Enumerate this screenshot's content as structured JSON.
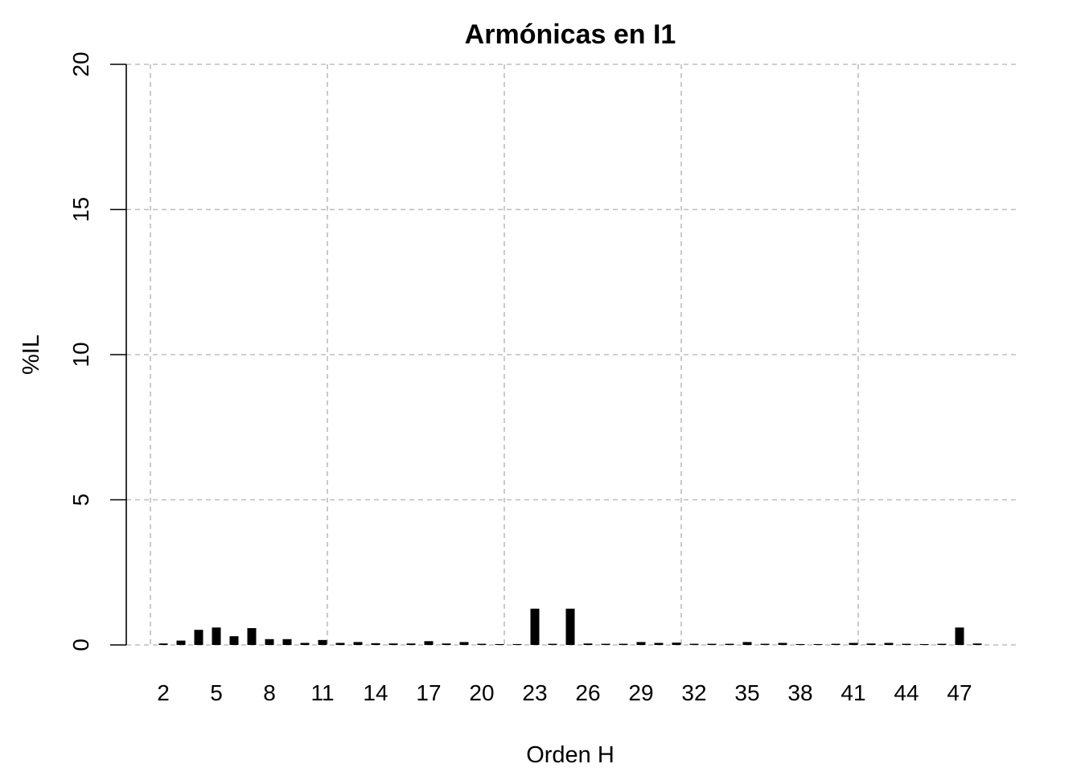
{
  "chart_data": {
    "type": "bar",
    "title": "Armónicas en I1",
    "xlabel": "Orden H",
    "ylabel": "%IL",
    "ylim": [
      0,
      20
    ],
    "y_ticks": [
      0,
      5,
      10,
      15,
      20
    ],
    "x_tick_labels": [
      "2",
      "5",
      "8",
      "11",
      "14",
      "17",
      "20",
      "23",
      "26",
      "29",
      "32",
      "35",
      "38",
      "41",
      "44",
      "47"
    ],
    "grid": true,
    "bar_color": "#000000",
    "grid_color": "#bdbdbd",
    "categories": [
      2,
      3,
      4,
      5,
      6,
      7,
      8,
      9,
      10,
      11,
      12,
      13,
      14,
      15,
      16,
      17,
      18,
      19,
      20,
      21,
      22,
      23,
      24,
      25,
      26,
      27,
      28,
      29,
      30,
      31,
      32,
      33,
      34,
      35,
      36,
      37,
      38,
      39,
      40,
      41,
      42,
      43,
      44,
      45,
      46,
      47,
      48
    ],
    "values": [
      0.05,
      0.15,
      0.52,
      0.6,
      0.3,
      0.58,
      0.2,
      0.2,
      0.07,
      0.17,
      0.07,
      0.1,
      0.06,
      0.05,
      0.05,
      0.13,
      0.05,
      0.1,
      0.04,
      0.03,
      0.03,
      1.25,
      0.04,
      1.25,
      0.05,
      0.04,
      0.04,
      0.1,
      0.07,
      0.08,
      0.04,
      0.04,
      0.04,
      0.1,
      0.04,
      0.07,
      0.03,
      0.03,
      0.04,
      0.07,
      0.05,
      0.07,
      0.04,
      0.03,
      0.04,
      0.6,
      0.05
    ]
  }
}
